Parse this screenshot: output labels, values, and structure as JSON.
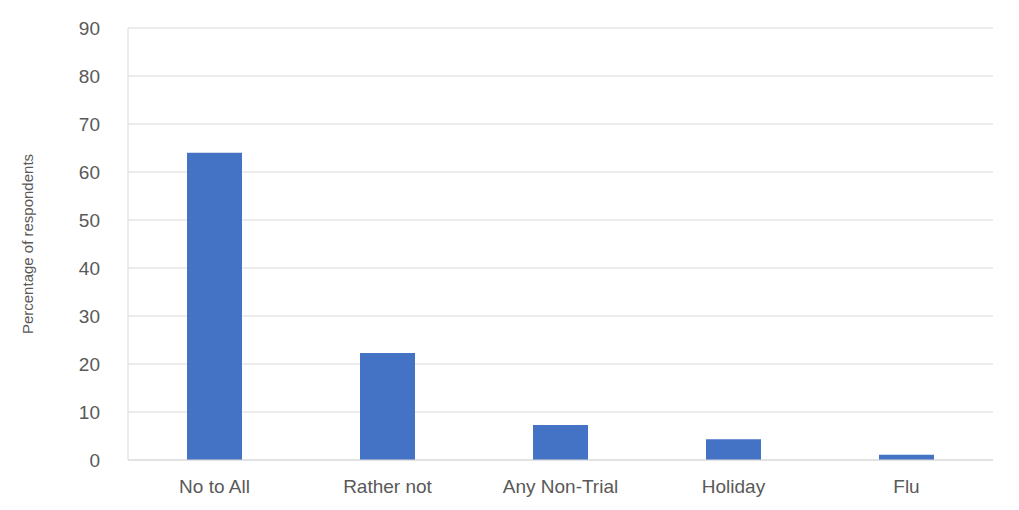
{
  "chart_data": {
    "type": "bar",
    "y_label": "Percentage of respondents",
    "categories": [
      "No to All",
      "Rather not",
      "Any Non-Trial",
      "Holiday",
      "Flu"
    ],
    "values": [
      64,
      22.3,
      7.3,
      4.3,
      1.1
    ],
    "color": "#4472c4",
    "ylim": [
      0,
      90
    ],
    "yticks": [
      0,
      10,
      20,
      30,
      40,
      50,
      60,
      70,
      80,
      90
    ],
    "grid": true
  }
}
